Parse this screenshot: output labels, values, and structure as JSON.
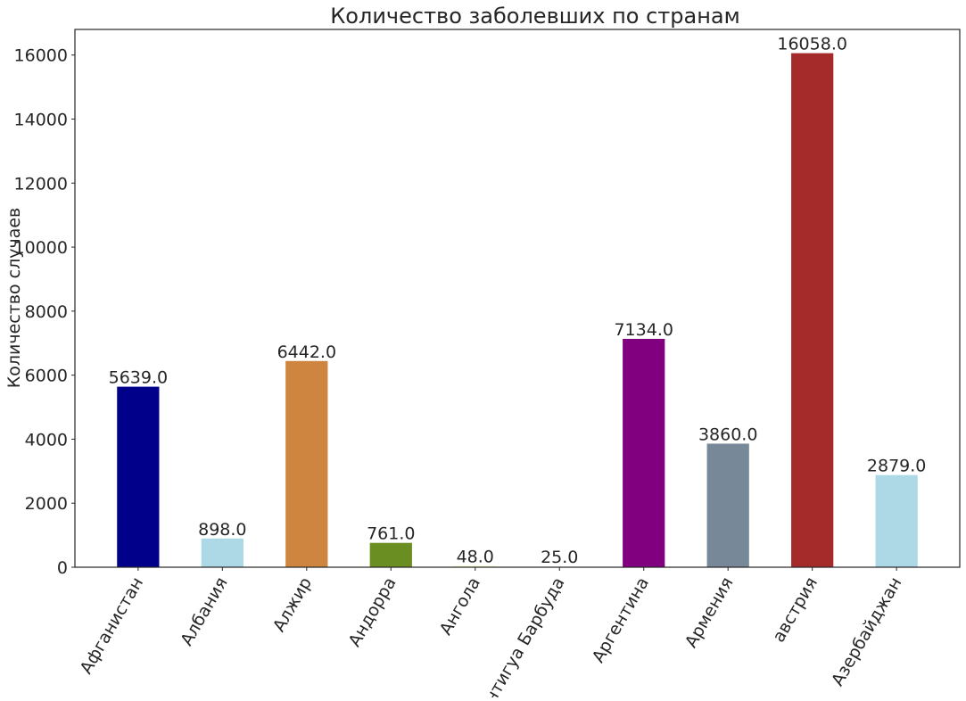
{
  "chart_data": {
    "type": "bar",
    "title": "Количество заболевших по странам",
    "xlabel": "",
    "ylabel": "Количество случаев",
    "categories": [
      "Афганистан",
      "Албания",
      "Алжир",
      "Андорра",
      "Ангола",
      "Антигуа Барбуда",
      "Аргентина",
      "Армения",
      "австрия",
      "Азербайджан"
    ],
    "values": [
      5639.0,
      898.0,
      6442.0,
      761.0,
      48.0,
      25.0,
      7134.0,
      3860.0,
      16058.0,
      2879.0
    ],
    "value_labels": [
      "5639.0",
      "898.0",
      "6442.0",
      "761.0",
      "48.0",
      "25.0",
      "7134.0",
      "3860.0",
      "16058.0",
      "2879.0"
    ],
    "colors": [
      "#00008b",
      "#add8e6",
      "#cd853f",
      "#6b8e23",
      "#fafad2",
      "#ffffff",
      "#800080",
      "#778899",
      "#a52a2a",
      "#add8e6"
    ],
    "y_ticks": [
      0,
      2000,
      4000,
      6000,
      8000,
      10000,
      12000,
      14000,
      16000
    ],
    "ylim": [
      0,
      16800
    ],
    "grid": false,
    "legend": "none"
  }
}
